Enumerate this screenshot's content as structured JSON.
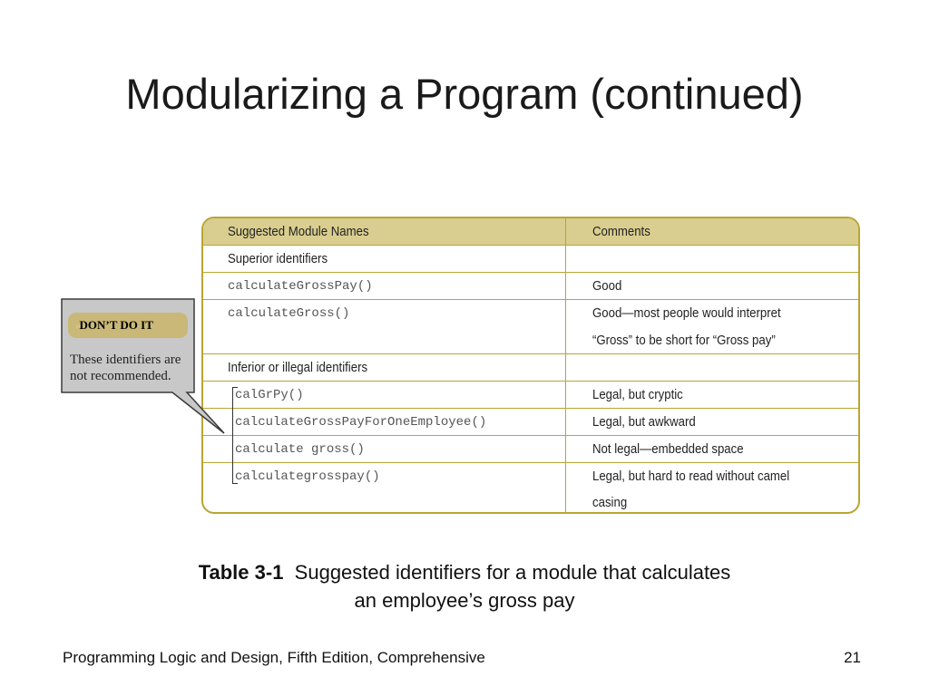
{
  "slide": {
    "title": "Modularizing a Program (continued)",
    "footer": "Programming Logic and Design, Fifth Edition, Comprehensive",
    "page_number": "21"
  },
  "table": {
    "headers": [
      "Suggested Module Names",
      "Comments"
    ],
    "rows": [
      {
        "name": "Superior identifiers",
        "comment": "",
        "type": "section"
      },
      {
        "name": "calculateGrossPay()",
        "comment": "Good",
        "type": "code"
      },
      {
        "name": "calculateGross()",
        "comment": "Good—most people would interpret",
        "comment2": "“Gross” to be short for “Gross pay”",
        "type": "code"
      },
      {
        "name": "Inferior or illegal identifiers",
        "comment": "",
        "type": "section"
      },
      {
        "name": "calGrPy()",
        "comment": "Legal, but cryptic",
        "type": "code"
      },
      {
        "name": "calculateGrossPayForOneEmployee()",
        "comment": "Legal, but awkward",
        "type": "code"
      },
      {
        "name": "calculate gross()",
        "comment": "Not legal—embedded space",
        "type": "code"
      },
      {
        "name": "calculategrosspay()",
        "comment": "Legal, but hard to read without camel",
        "comment2": "casing",
        "type": "code"
      }
    ]
  },
  "callout": {
    "badge_icon": "double-chevron-icon",
    "badge_icon_glyph": "»",
    "badge_label": "DON’T DO IT",
    "text": "These identifiers are not recommended."
  },
  "caption": {
    "label": "Table 3-1",
    "text_line1": "Suggested identifiers for a module that calculates",
    "text_line2": "an employee’s gross pay"
  },
  "colors": {
    "table_border": "#b9a533",
    "header_fill": "#d9ce8f",
    "callout_fill": "#c8c8c8",
    "badge_fill": "#c9b877"
  }
}
